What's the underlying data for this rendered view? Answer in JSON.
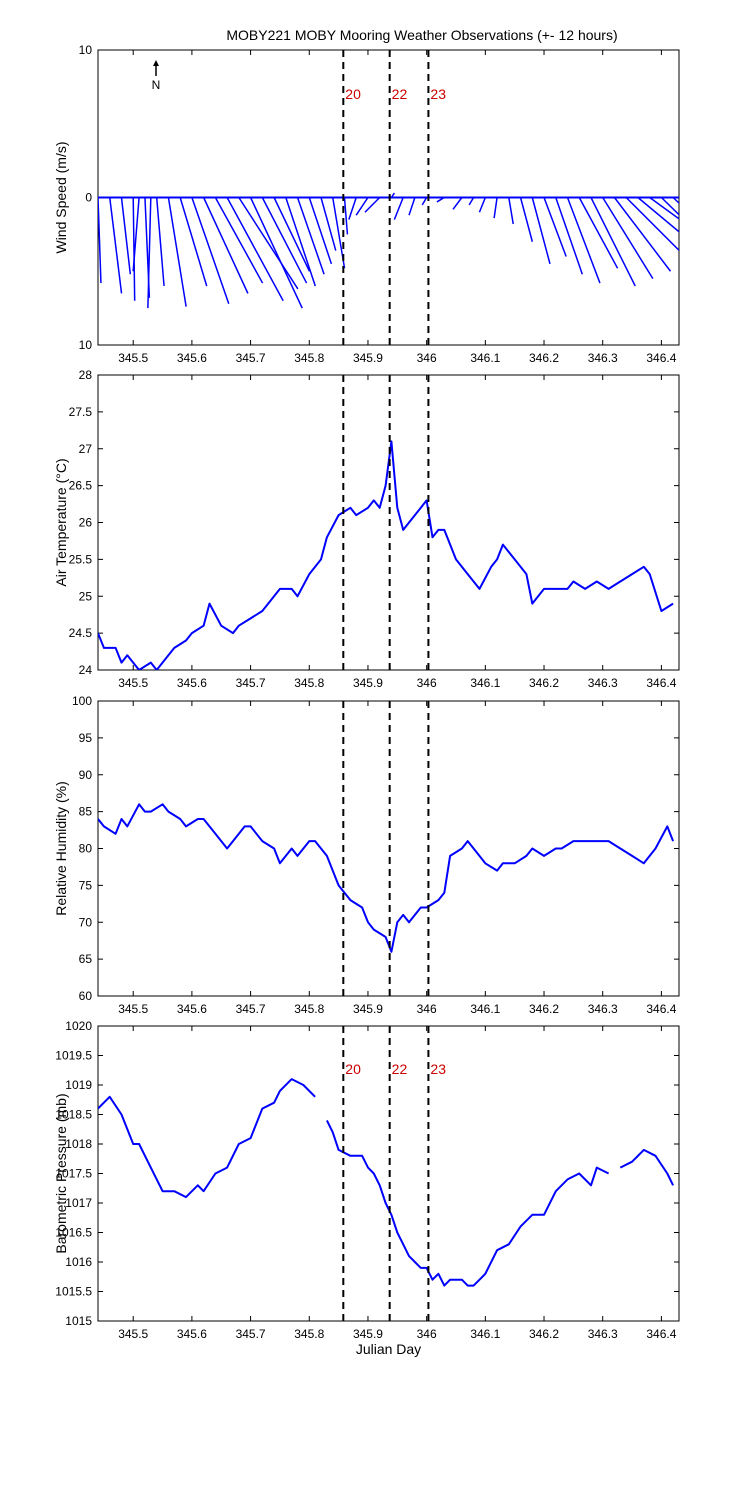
{
  "title": "MOBY221 MOBY Mooring Weather Observations (+- 12 hours)",
  "colors": {
    "series": "#0000ff",
    "event_text": "#cc0000",
    "axes": "#000000"
  },
  "events": [
    {
      "label": "20",
      "x": 345.858
    },
    {
      "label": "22",
      "x": 345.937
    },
    {
      "label": "23",
      "x": 346.003
    }
  ],
  "x_ticks": [
    "345.5",
    "345.6",
    "345.7",
    "345.8",
    "345.9",
    "346",
    "346.1",
    "346.2",
    "346.3",
    "346.4"
  ],
  "north_label": "N",
  "chart_data": [
    {
      "type": "quiver",
      "ylabel": "Wind Speed (m/s)",
      "xlim": [
        345.44,
        346.43
      ],
      "ylim": [
        -10,
        10
      ],
      "y_ticks": [
        "10",
        "0",
        "10"
      ],
      "x": [
        345.44,
        345.46,
        345.48,
        345.5,
        345.51,
        345.52,
        345.53,
        345.54,
        345.56,
        345.58,
        345.6,
        345.62,
        345.64,
        345.66,
        345.68,
        345.7,
        345.72,
        345.74,
        345.76,
        345.78,
        345.8,
        345.82,
        345.84,
        345.86,
        345.88,
        345.9,
        345.92,
        345.94,
        345.96,
        345.98,
        346.0,
        346.03,
        346.06,
        346.08,
        346.1,
        346.12,
        346.14,
        346.16,
        346.18,
        346.2,
        346.22,
        346.24,
        346.26,
        346.28,
        346.3,
        346.32,
        346.34,
        346.36,
        346.38,
        346.4,
        346.42
      ],
      "u": [
        0.2,
        0.8,
        0.6,
        0.1,
        -0.4,
        0.3,
        -0.2,
        0.5,
        1.2,
        1.8,
        2.5,
        3.0,
        3.2,
        3.8,
        4.0,
        3.5,
        3.0,
        2.4,
        2.0,
        1.8,
        1.5,
        1.0,
        0.8,
        0.2,
        -0.5,
        -0.8,
        -1.0,
        0.2,
        -0.6,
        -0.4,
        -0.3,
        -0.5,
        -0.6,
        -0.3,
        -0.4,
        -0.2,
        0.3,
        0.8,
        1.2,
        1.5,
        1.8,
        2.2,
        2.6,
        3.0,
        3.4,
        3.8,
        4.0,
        4.2,
        4.4,
        4.6,
        4.8
      ],
      "v": [
        -5.8,
        -6.5,
        -5.2,
        -7.0,
        -5.0,
        -6.8,
        -7.5,
        -6.0,
        -7.4,
        -6.0,
        -7.2,
        -6.5,
        -5.8,
        -7.0,
        -6.2,
        -7.5,
        -5.8,
        -5.0,
        -6.0,
        -5.2,
        -4.5,
        -3.6,
        -4.8,
        -2.5,
        -1.5,
        -1.2,
        -1.0,
        0.3,
        -1.5,
        -1.2,
        -0.5,
        -0.3,
        -0.8,
        -0.5,
        -1.0,
        -1.4,
        -1.8,
        -3.0,
        -4.5,
        -4.0,
        -5.2,
        -5.8,
        -4.8,
        -6.0,
        -5.5,
        -5.0,
        -4.0,
        -3.5,
        -3.2,
        -4.5,
        -4.6
      ]
    },
    {
      "type": "line",
      "ylabel": "Air Temperature (°C)",
      "xlim": [
        345.44,
        346.43
      ],
      "ylim": [
        24,
        28
      ],
      "y_ticks": [
        "28",
        "27.5",
        "27",
        "26.5",
        "26",
        "25.5",
        "25",
        "24.5",
        "24"
      ],
      "x": [
        345.44,
        345.45,
        345.47,
        345.48,
        345.49,
        345.51,
        345.53,
        345.54,
        345.56,
        345.57,
        345.59,
        345.6,
        345.62,
        345.63,
        345.65,
        345.67,
        345.68,
        345.7,
        345.72,
        345.73,
        345.75,
        345.77,
        345.78,
        345.8,
        345.82,
        345.83,
        345.85,
        345.87,
        345.88,
        345.9,
        345.91,
        345.92,
        345.93,
        345.94,
        345.95,
        345.96,
        345.98,
        345.99,
        346.0,
        346.01,
        346.02,
        346.03,
        346.05,
        346.07,
        346.09,
        346.11,
        346.12,
        346.13,
        346.15,
        346.17,
        346.18,
        346.2,
        346.22,
        346.24,
        346.25,
        346.27,
        346.29,
        346.31,
        346.33,
        346.35,
        346.37,
        346.38,
        346.4,
        346.42
      ],
      "values": [
        24.5,
        24.3,
        24.3,
        24.1,
        24.2,
        24.0,
        24.1,
        24.0,
        24.2,
        24.3,
        24.4,
        24.5,
        24.6,
        24.9,
        24.6,
        24.5,
        24.6,
        24.7,
        24.8,
        24.9,
        25.1,
        25.1,
        25.0,
        25.3,
        25.5,
        25.8,
        26.1,
        26.2,
        26.1,
        26.2,
        26.3,
        26.2,
        26.5,
        27.1,
        26.2,
        25.9,
        26.1,
        26.2,
        26.3,
        25.8,
        25.9,
        25.9,
        25.5,
        25.3,
        25.1,
        25.4,
        25.5,
        25.7,
        25.5,
        25.3,
        24.9,
        25.1,
        25.1,
        25.1,
        25.2,
        25.1,
        25.2,
        25.1,
        25.2,
        25.3,
        25.4,
        25.3,
        24.8,
        24.9
      ]
    },
    {
      "type": "line",
      "ylabel": "Relative Humidity (%)",
      "xlim": [
        345.44,
        346.43
      ],
      "ylim": [
        60,
        100
      ],
      "y_ticks": [
        "100",
        "95",
        "90",
        "85",
        "80",
        "75",
        "70",
        "65",
        "60"
      ],
      "x": [
        345.44,
        345.45,
        345.47,
        345.48,
        345.49,
        345.51,
        345.52,
        345.53,
        345.55,
        345.56,
        345.58,
        345.59,
        345.61,
        345.62,
        345.64,
        345.66,
        345.67,
        345.69,
        345.7,
        345.72,
        345.74,
        345.75,
        345.77,
        345.78,
        345.8,
        345.81,
        345.83,
        345.85,
        345.86,
        345.87,
        345.89,
        345.9,
        345.91,
        345.93,
        345.94,
        345.95,
        345.96,
        345.97,
        345.99,
        346.0,
        346.02,
        346.03,
        346.04,
        346.06,
        346.07,
        346.08,
        346.1,
        346.12,
        346.13,
        346.15,
        346.17,
        346.18,
        346.2,
        346.22,
        346.23,
        346.25,
        346.27,
        346.29,
        346.31,
        346.33,
        346.35,
        346.37,
        346.39,
        346.41,
        346.42
      ],
      "values": [
        84,
        83,
        82,
        84,
        83,
        86,
        85,
        85,
        86,
        85,
        84,
        83,
        84,
        84,
        82,
        80,
        81,
        83,
        83,
        81,
        80,
        78,
        80,
        79,
        81,
        81,
        79,
        75,
        74,
        73,
        72,
        70,
        69,
        68,
        66,
        70,
        71,
        70,
        72,
        72,
        73,
        74,
        79,
        80,
        81,
        80,
        78,
        77,
        78,
        78,
        79,
        80,
        79,
        80,
        80,
        81,
        81,
        81,
        81,
        80,
        79,
        78,
        80,
        83,
        81
      ]
    },
    {
      "type": "line",
      "ylabel": "Barometric Pressure (mb)",
      "xlabel": "Julian Day",
      "xlim": [
        345.44,
        346.43
      ],
      "ylim": [
        1015,
        1020
      ],
      "y_ticks": [
        "1020",
        "1019.5",
        "1019",
        "1018.5",
        "1018",
        "1017.5",
        "1017",
        "1016.5",
        "1016",
        "1015.5",
        "1015"
      ],
      "x": [
        345.44,
        345.46,
        345.48,
        345.5,
        345.51,
        345.53,
        345.55,
        345.57,
        345.59,
        345.61,
        345.62,
        345.64,
        345.66,
        345.68,
        345.7,
        345.72,
        345.74,
        345.75,
        345.77,
        345.79,
        345.81,
        null,
        345.83,
        345.84,
        345.85,
        345.87,
        345.88,
        345.89,
        345.9,
        345.91,
        345.92,
        345.93,
        345.94,
        345.95,
        345.96,
        345.97,
        345.98,
        345.99,
        346.0,
        346.01,
        346.02,
        346.03,
        346.04,
        346.05,
        346.06,
        346.07,
        346.08,
        346.09,
        346.1,
        346.12,
        346.14,
        346.16,
        346.18,
        346.2,
        346.22,
        346.24,
        346.26,
        346.28,
        346.29,
        346.31,
        null,
        346.33,
        346.35,
        346.37,
        346.39,
        346.41,
        346.42
      ],
      "values": [
        1018.6,
        1018.8,
        1018.5,
        1018.0,
        1018.0,
        1017.6,
        1017.2,
        1017.2,
        1017.1,
        1017.3,
        1017.2,
        1017.5,
        1017.6,
        1018.0,
        1018.1,
        1018.6,
        1018.7,
        1018.9,
        1019.1,
        1019.0,
        1018.8,
        null,
        1018.4,
        1018.2,
        1017.9,
        1017.8,
        1017.8,
        1017.8,
        1017.6,
        1017.5,
        1017.3,
        1017.0,
        1016.8,
        1016.5,
        1016.3,
        1016.1,
        1016.0,
        1015.9,
        1015.9,
        1015.7,
        1015.8,
        1015.6,
        1015.7,
        1015.7,
        1015.7,
        1015.6,
        1015.6,
        1015.7,
        1015.8,
        1016.2,
        1016.3,
        1016.6,
        1016.8,
        1016.8,
        1017.2,
        1017.4,
        1017.5,
        1017.3,
        1017.6,
        1017.5,
        null,
        1017.6,
        1017.7,
        1017.9,
        1017.8,
        1017.5,
        1017.3
      ]
    }
  ]
}
